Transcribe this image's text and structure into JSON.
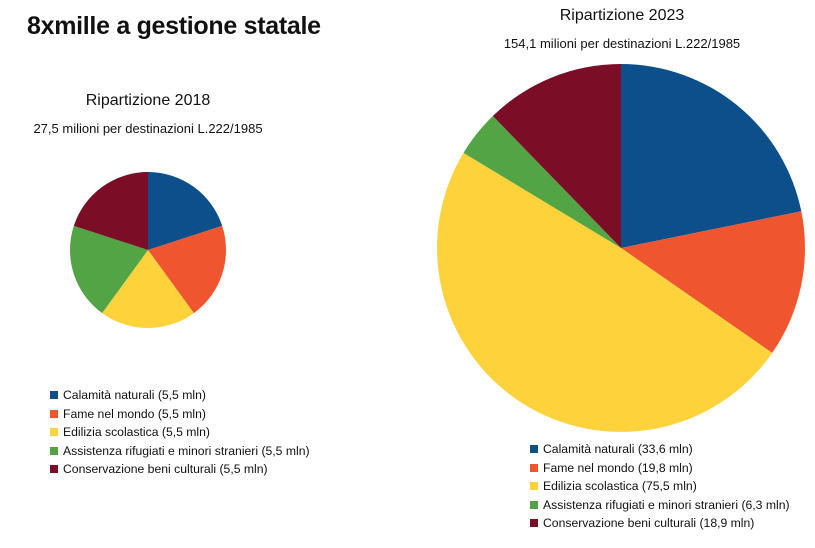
{
  "title": "8xmille a gestione statale",
  "colors": {
    "calamita": "#0d4f8b",
    "fame": "#ef5630",
    "edilizia": "#fdd23a",
    "rifugiati": "#52a444",
    "beni_culturali": "#7b0d26"
  },
  "chart_data": [
    {
      "type": "pie",
      "title": "Ripartizione 2018",
      "subtitle": "27,5 milioni per destinazioni L.222/1985",
      "total": 27.5,
      "start_angle_deg": 0,
      "direction": "clockwise",
      "slices": [
        {
          "label": "Calamità naturali",
          "value": 5.5,
          "color_key": "calamita",
          "legend": "Calamità naturali (5,5 mln)"
        },
        {
          "label": "Fame nel mondo",
          "value": 5.5,
          "color_key": "fame",
          "legend": "Fame nel mondo (5,5 mln)"
        },
        {
          "label": "Edilizia scolastica",
          "value": 5.5,
          "color_key": "edilizia",
          "legend": "Edilizia scolastica (5,5 mln)"
        },
        {
          "label": "Assistenza rifugiati e minori stranieri",
          "value": 5.5,
          "color_key": "rifugiati",
          "legend": "Assistenza rifugiati e minori stranieri (5,5 mln)"
        },
        {
          "label": "Conservazione beni culturali",
          "value": 5.5,
          "color_key": "beni_culturali",
          "legend": "Conservazione beni culturali (5,5 mln)"
        }
      ],
      "legend_position": "below"
    },
    {
      "type": "pie",
      "title": "Ripartizione 2023",
      "subtitle": "154,1 milioni per destinazioni L.222/1985",
      "total": 154.1,
      "start_angle_deg": 0,
      "direction": "clockwise",
      "slices": [
        {
          "label": "Calamità naturali",
          "value": 33.6,
          "color_key": "calamita",
          "legend": "Calamità naturali (33,6 mln)"
        },
        {
          "label": "Fame nel mondo",
          "value": 19.8,
          "color_key": "fame",
          "legend": "Fame nel mondo (19,8 mln)"
        },
        {
          "label": "Edilizia scolastica",
          "value": 75.5,
          "color_key": "edilizia",
          "legend": "Edilizia scolastica (75,5 mln)"
        },
        {
          "label": "Assistenza rifugiati e minori stranieri",
          "value": 6.3,
          "color_key": "rifugiati",
          "legend": "Assistenza rifugiati e minori stranieri (6,3 mln)"
        },
        {
          "label": "Conservazione beni culturali",
          "value": 18.9,
          "color_key": "beni_culturali",
          "legend": "Conservazione beni culturali (18,9 mln)"
        }
      ],
      "legend_position": "below"
    }
  ]
}
